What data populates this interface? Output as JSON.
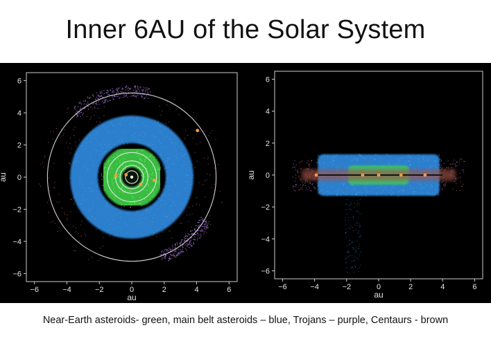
{
  "slide": {
    "title": "Inner 6AU of the Solar System",
    "caption": "Near-Earth asteroids- green, main belt asteroids – blue, Trojans – purple, Centaurs - brown"
  },
  "colors": {
    "background": "#000000",
    "near_earth": "#3fd24a",
    "main_belt": "#2f86d8",
    "trojans": "#a070d0",
    "centaurs": "#a0524a",
    "orbits": "#e8e8e8",
    "planet": "#ff9a3a",
    "sun": "#ffffff"
  },
  "chart_data": [
    {
      "type": "scatter",
      "view": "top-down",
      "xlabel": "au",
      "ylabel": "au",
      "xlim": [
        -6.5,
        6.5
      ],
      "ylim": [
        -6.5,
        6.5
      ],
      "xticks": [
        -6,
        -4,
        -2,
        0,
        2,
        4,
        6
      ],
      "yticks": [
        -6,
        -4,
        -2,
        0,
        2,
        4,
        6
      ],
      "xtick_labels": [
        "−6",
        "−4",
        "−2",
        "0",
        "2",
        "4",
        "6"
      ],
      "ytick_labels": [
        "−6",
        "−4",
        "−2",
        "0",
        "2",
        "4",
        "6"
      ],
      "orbits_au": [
        0.39,
        0.72,
        1.0,
        1.52,
        5.2
      ],
      "main_belt_au": [
        2.1,
        3.8
      ],
      "near_earth_au": [
        0.6,
        1.9
      ],
      "trojan_arcs_deg": [
        {
          "center": 105,
          "width": 55
        },
        {
          "center": -50,
          "width": 40
        }
      ],
      "planets": [
        {
          "x": 0.0,
          "y": 0.0
        },
        {
          "x": -0.35,
          "y": 0.15
        },
        {
          "x": 0.55,
          "y": -0.45
        },
        {
          "x": -0.98,
          "y": 0.1
        },
        {
          "x": 1.38,
          "y": -0.2
        },
        {
          "x": 4.05,
          "y": 2.9
        }
      ],
      "grid": false
    },
    {
      "type": "scatter",
      "view": "edge-on",
      "xlabel": "au",
      "ylabel": "au",
      "xlim": [
        -6.5,
        6.5
      ],
      "ylim": [
        -6.5,
        6.5
      ],
      "xticks": [
        -6,
        -4,
        -2,
        0,
        2,
        4,
        6
      ],
      "yticks": [
        -6,
        -4,
        -2,
        0,
        2,
        4,
        6
      ],
      "xtick_labels": [
        "−6",
        "−4",
        "−2",
        "0",
        "2",
        "4",
        "6"
      ],
      "ytick_labels": [
        "−6",
        "−4",
        "−2",
        "0",
        "2",
        "4",
        "6"
      ],
      "main_belt_extent_au": {
        "x": [
          -3.8,
          3.8
        ],
        "z": [
          -1.3,
          1.3
        ]
      },
      "near_earth_extent_au": {
        "x": [
          -1.9,
          1.9
        ],
        "z": [
          -0.6,
          0.6
        ]
      },
      "planets": [
        {
          "x": -3.9,
          "y": 0.0
        },
        {
          "x": -1.0,
          "y": 0.0
        },
        {
          "x": 0.0,
          "y": 0.0
        },
        {
          "x": 1.4,
          "y": 0.0
        },
        {
          "x": 2.9,
          "y": 0.0
        }
      ],
      "grid": false
    }
  ]
}
